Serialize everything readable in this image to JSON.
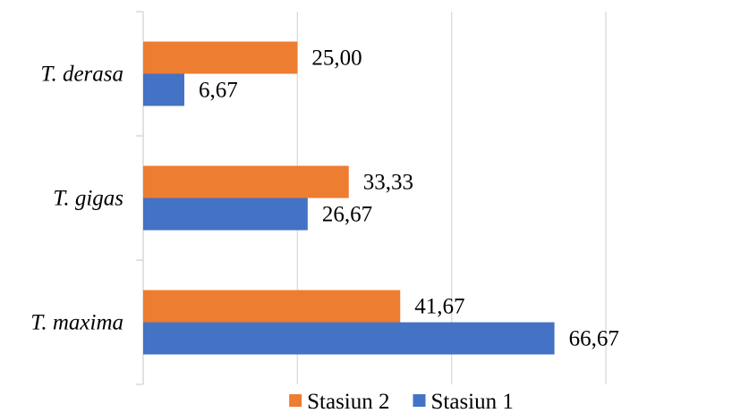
{
  "chart_data": {
    "type": "bar",
    "orientation": "horizontal",
    "categories": [
      "T. derasa",
      "T. gigas",
      "T. maxima"
    ],
    "series": [
      {
        "name": "Stasiun 2",
        "color": "#ED7D31",
        "values": [
          25.0,
          33.33,
          41.67
        ],
        "labels": [
          "25,00",
          "33,33",
          "41,67"
        ]
      },
      {
        "name": "Stasiun 1",
        "color": "#4472C4",
        "values": [
          6.67,
          26.67,
          66.67
        ],
        "labels": [
          "6,67",
          "26,67",
          "66,67"
        ]
      }
    ],
    "xlim": [
      0,
      75
    ],
    "xgrid_step": 25,
    "grid": true,
    "value_labels": true,
    "legend": {
      "position": "bottom",
      "entries": [
        "Stasiun 2",
        "Stasiun 1"
      ]
    }
  }
}
